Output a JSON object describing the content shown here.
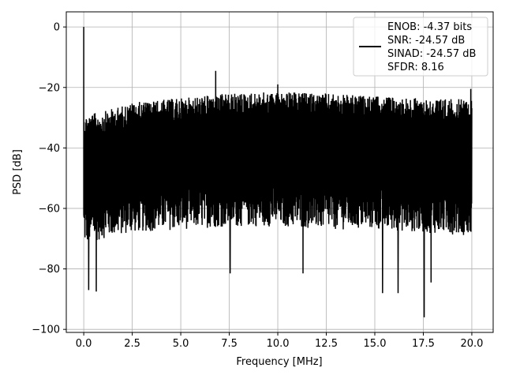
{
  "chart_data": {
    "type": "line",
    "title": "",
    "xlabel": "Frequency [MHz]",
    "ylabel": "PSD [dB]",
    "xlim": [
      -0.9,
      21.1
    ],
    "ylim": [
      -101,
      5
    ],
    "x_ticks": [
      0.0,
      2.5,
      5.0,
      7.5,
      10.0,
      12.5,
      15.0,
      17.5,
      20.0
    ],
    "x_tick_labels": [
      "0.0",
      "2.5",
      "5.0",
      "7.5",
      "10.0",
      "12.5",
      "15.0",
      "17.5",
      "20.0"
    ],
    "y_ticks": [
      0,
      -20,
      -40,
      -60,
      -80,
      -100
    ],
    "y_tick_labels": [
      "0",
      "−20",
      "−40",
      "−60",
      "−80",
      "−100"
    ],
    "grid": true,
    "legend_position": "top-right",
    "line_color": "#000000",
    "series": [
      {
        "legend_lines": [
          "ENOB: -4.37 bits",
          "SNR: -24.57 dB",
          "SINAD: -24.57 dB",
          "SFDR: 8.16"
        ],
        "x_range": [
          0.0,
          20.0
        ],
        "dc_peak": {
          "x": 0.0,
          "y": 0.0
        },
        "notable_peaks": [
          {
            "x": 6.8,
            "y": -14.5
          },
          {
            "x": 10.0,
            "y": -19.0
          },
          {
            "x": 19.95,
            "y": -20.5
          }
        ],
        "notable_dips": [
          {
            "x": 0.25,
            "y": -87
          },
          {
            "x": 0.65,
            "y": -87.5
          },
          {
            "x": 7.55,
            "y": -81.5
          },
          {
            "x": 11.3,
            "y": -81.5
          },
          {
            "x": 15.4,
            "y": -88
          },
          {
            "x": 16.2,
            "y": -88
          },
          {
            "x": 17.55,
            "y": -96
          },
          {
            "x": 17.9,
            "y": -84.5
          }
        ],
        "envelope": [
          {
            "x": 0.1,
            "upper": -29,
            "lower": -72
          },
          {
            "x": 1.0,
            "upper": -28,
            "lower": -70
          },
          {
            "x": 2.5,
            "upper": -25,
            "lower": -68
          },
          {
            "x": 5.0,
            "upper": -23.5,
            "lower": -67
          },
          {
            "x": 7.5,
            "upper": -22,
            "lower": -66
          },
          {
            "x": 10.0,
            "upper": -21.5,
            "lower": -66
          },
          {
            "x": 12.5,
            "upper": -22,
            "lower": -67
          },
          {
            "x": 15.0,
            "upper": -23,
            "lower": -67
          },
          {
            "x": 17.5,
            "upper": -23.5,
            "lower": -68
          },
          {
            "x": 20.0,
            "upper": -24,
            "lower": -69
          }
        ]
      }
    ]
  }
}
